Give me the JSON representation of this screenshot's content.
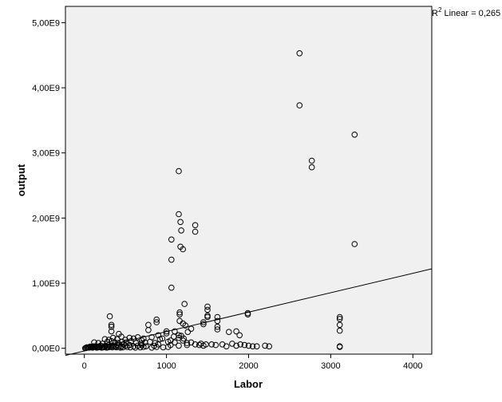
{
  "chart_data": {
    "type": "scatter",
    "xlabel": "Labor",
    "ylabel": "output",
    "xlim": [
      -230,
      4230
    ],
    "ylim": [
      -90000000,
      5250000000
    ],
    "x_ticks": [
      {
        "value": 0,
        "label": "0"
      },
      {
        "value": 1000,
        "label": "1000"
      },
      {
        "value": 2000,
        "label": "2000"
      },
      {
        "value": 3000,
        "label": "3000"
      },
      {
        "value": 4000,
        "label": "4000"
      }
    ],
    "y_ticks": [
      {
        "value": 0,
        "label": "0,00E0"
      },
      {
        "value": 1000000000,
        "label": "1,00E9"
      },
      {
        "value": 2000000000,
        "label": "2,00E9"
      },
      {
        "value": 3000000000,
        "label": "3,00E9"
      },
      {
        "value": 4000000000,
        "label": "4,00E9"
      },
      {
        "value": 5000000000,
        "label": "5,00E9"
      }
    ],
    "fit_line": {
      "label": "Linear",
      "r2_label": "R",
      "r2_exponent": "2",
      "r2_text": " Linear = 0,265",
      "points": [
        [
          -230,
          -110000000
        ],
        [
          4230,
          1220000000
        ]
      ]
    },
    "grid": false,
    "plot_background": "#f0f0f0",
    "marker_color": "#000000",
    "points": [
      [
        2620,
        4530000000
      ],
      [
        2620,
        3730000000
      ],
      [
        3290,
        3280000000
      ],
      [
        2770,
        2880000000
      ],
      [
        2770,
        2780000000
      ],
      [
        3290,
        1600000000
      ],
      [
        1150,
        2720000000
      ],
      [
        1150,
        2060000000
      ],
      [
        1170,
        1940000000
      ],
      [
        1180,
        1810000000
      ],
      [
        1350,
        1890000000
      ],
      [
        1350,
        1790000000
      ],
      [
        1060,
        1670000000
      ],
      [
        1170,
        1560000000
      ],
      [
        1200,
        1520000000
      ],
      [
        1060,
        1360000000
      ],
      [
        1060,
        930000000
      ],
      [
        1220,
        680000000
      ],
      [
        1500,
        640000000
      ],
      [
        1500,
        590000000
      ],
      [
        1990,
        540000000
      ],
      [
        1990,
        520000000
      ],
      [
        3110,
        480000000
      ],
      [
        3110,
        450000000
      ],
      [
        3110,
        360000000
      ],
      [
        3110,
        270000000
      ],
      [
        3110,
        30000000
      ],
      [
        3110,
        20000000
      ],
      [
        310,
        490000000
      ],
      [
        880,
        440000000
      ],
      [
        880,
        400000000
      ],
      [
        780,
        360000000
      ],
      [
        780,
        280000000
      ],
      [
        330,
        360000000
      ],
      [
        330,
        330000000
      ],
      [
        330,
        260000000
      ],
      [
        1160,
        550000000
      ],
      [
        1160,
        520000000
      ],
      [
        1160,
        420000000
      ],
      [
        1200,
        380000000
      ],
      [
        1230,
        350000000
      ],
      [
        1300,
        300000000
      ],
      [
        1450,
        400000000
      ],
      [
        1450,
        370000000
      ],
      [
        1500,
        500000000
      ],
      [
        1500,
        480000000
      ],
      [
        1620,
        480000000
      ],
      [
        1620,
        420000000
      ],
      [
        1620,
        330000000
      ],
      [
        1620,
        290000000
      ],
      [
        1760,
        250000000
      ],
      [
        1850,
        260000000
      ],
      [
        1890,
        200000000
      ],
      [
        1000,
        260000000
      ],
      [
        1000,
        230000000
      ],
      [
        1100,
        260000000
      ],
      [
        1150,
        200000000
      ],
      [
        1150,
        160000000
      ],
      [
        1200,
        120000000
      ],
      [
        900,
        200000000
      ],
      [
        950,
        150000000
      ],
      [
        420,
        220000000
      ],
      [
        450,
        180000000
      ],
      [
        600,
        150000000
      ],
      [
        700,
        120000000
      ],
      [
        1050,
        120000000
      ],
      [
        1100,
        90000000
      ],
      [
        1250,
        80000000
      ],
      [
        1300,
        90000000
      ],
      [
        1350,
        60000000
      ],
      [
        1400,
        50000000
      ],
      [
        1450,
        40000000
      ],
      [
        1550,
        60000000
      ],
      [
        1600,
        50000000
      ],
      [
        1680,
        60000000
      ],
      [
        1730,
        30000000
      ],
      [
        1800,
        70000000
      ],
      [
        1850,
        40000000
      ],
      [
        1900,
        60000000
      ],
      [
        1950,
        50000000
      ],
      [
        2000,
        40000000
      ],
      [
        2050,
        30000000
      ],
      [
        2100,
        30000000
      ],
      [
        2200,
        40000000
      ],
      [
        2250,
        30000000
      ],
      [
        1480,
        60000000
      ],
      [
        1420,
        70000000
      ],
      [
        1250,
        50000000
      ],
      [
        1150,
        40000000
      ],
      [
        1050,
        50000000
      ],
      [
        900,
        60000000
      ],
      [
        850,
        40000000
      ],
      [
        750,
        30000000
      ],
      [
        700,
        50000000
      ],
      [
        650,
        40000000
      ],
      [
        600,
        30000000
      ],
      [
        550,
        50000000
      ],
      [
        500,
        40000000
      ],
      [
        480,
        60000000
      ],
      [
        450,
        30000000
      ],
      [
        400,
        50000000
      ],
      [
        380,
        30000000
      ],
      [
        350,
        40000000
      ],
      [
        320,
        30000000
      ],
      [
        300,
        50000000
      ],
      [
        280,
        20000000
      ],
      [
        260,
        40000000
      ],
      [
        240,
        30000000
      ],
      [
        220,
        20000000
      ],
      [
        200,
        40000000
      ],
      [
        180,
        30000000
      ],
      [
        160,
        20000000
      ],
      [
        140,
        30000000
      ],
      [
        120,
        20000000
      ],
      [
        100,
        10000000
      ],
      [
        80,
        20000000
      ],
      [
        60,
        10000000
      ],
      [
        40,
        10000000
      ],
      [
        20,
        5000000
      ],
      [
        10,
        2000000
      ],
      [
        30,
        15000000
      ],
      [
        50,
        12000000
      ],
      [
        70,
        25000000
      ],
      [
        90,
        15000000
      ],
      [
        110,
        30000000
      ],
      [
        130,
        25000000
      ],
      [
        150,
        10000000
      ],
      [
        170,
        15000000
      ],
      [
        190,
        20000000
      ],
      [
        210,
        10000000
      ],
      [
        230,
        15000000
      ],
      [
        250,
        25000000
      ],
      [
        270,
        10000000
      ],
      [
        290,
        15000000
      ],
      [
        310,
        20000000
      ],
      [
        340,
        15000000
      ],
      [
        360,
        25000000
      ],
      [
        390,
        15000000
      ],
      [
        420,
        20000000
      ],
      [
        440,
        10000000
      ],
      [
        470,
        15000000
      ],
      [
        520,
        20000000
      ],
      [
        560,
        15000000
      ],
      [
        620,
        10000000
      ],
      [
        680,
        15000000
      ],
      [
        720,
        20000000
      ],
      [
        820,
        10000000
      ],
      [
        880,
        20000000
      ],
      [
        960,
        15000000
      ],
      [
        1020,
        20000000
      ],
      [
        120,
        90000000
      ],
      [
        170,
        80000000
      ],
      [
        220,
        70000000
      ],
      [
        280,
        100000000
      ],
      [
        330,
        110000000
      ],
      [
        370,
        90000000
      ],
      [
        410,
        80000000
      ],
      [
        460,
        100000000
      ],
      [
        510,
        90000000
      ],
      [
        570,
        110000000
      ],
      [
        630,
        80000000
      ],
      [
        690,
        70000000
      ],
      [
        740,
        90000000
      ],
      [
        800,
        100000000
      ],
      [
        860,
        80000000
      ],
      [
        250,
        140000000
      ],
      [
        300,
        130000000
      ],
      [
        350,
        160000000
      ],
      [
        400,
        140000000
      ],
      [
        500,
        130000000
      ],
      [
        550,
        160000000
      ],
      [
        650,
        170000000
      ],
      [
        720,
        150000000
      ],
      [
        820,
        170000000
      ],
      [
        920,
        140000000
      ],
      [
        1090,
        180000000
      ],
      [
        1180,
        190000000
      ],
      [
        1260,
        250000000
      ],
      [
        1020,
        100000000
      ],
      [
        1210,
        150000000
      ]
    ]
  }
}
